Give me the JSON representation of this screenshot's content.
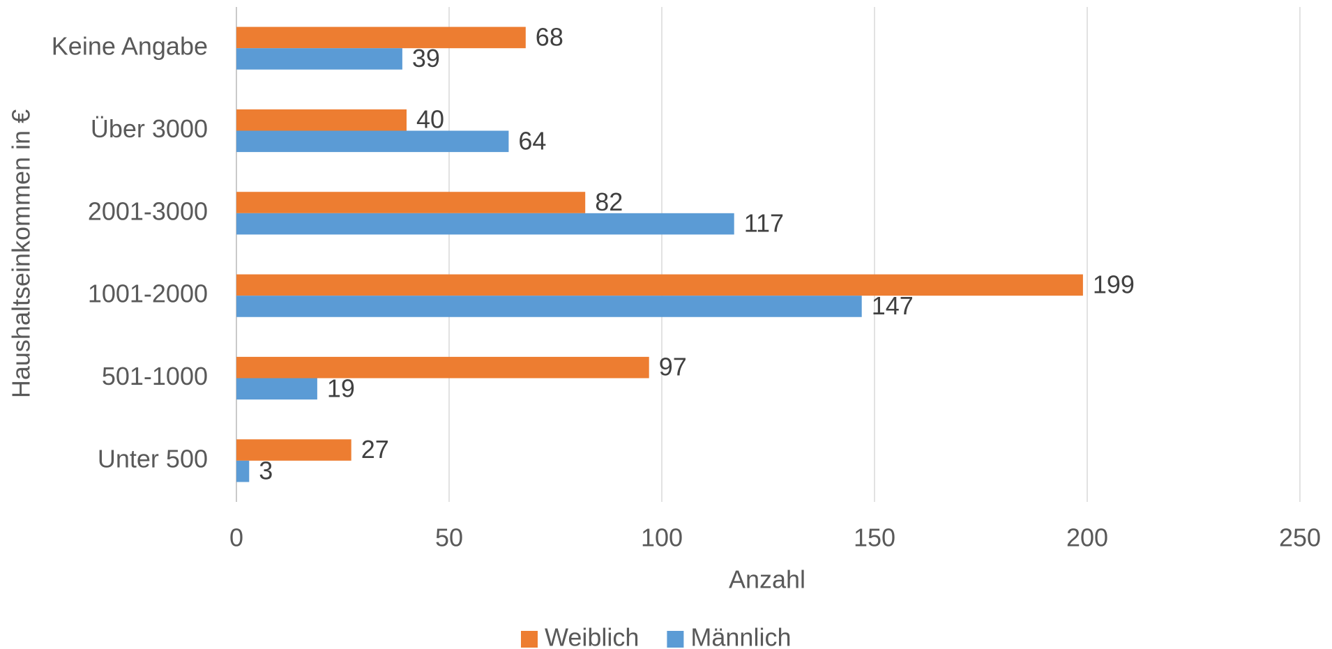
{
  "chart_data": {
    "type": "bar",
    "orientation": "horizontal",
    "categories": [
      "Unter 500",
      "501-1000",
      "1001-2000",
      "2001-3000",
      "Über 3000",
      "Keine Angabe"
    ],
    "series": [
      {
        "name": "Weiblich",
        "color": "#ED7D31",
        "values": [
          27,
          97,
          199,
          82,
          40,
          68
        ]
      },
      {
        "name": "Männlich",
        "color": "#5B9BD5",
        "values": [
          3,
          19,
          147,
          117,
          64,
          39
        ]
      }
    ],
    "xlabel": "Anzahl",
    "ylabel": "Haushaltseinkommen in €",
    "xlim": [
      0,
      250
    ],
    "xticks": [
      0,
      50,
      100,
      150,
      200,
      250
    ],
    "grid": true,
    "legend": "bottom"
  }
}
